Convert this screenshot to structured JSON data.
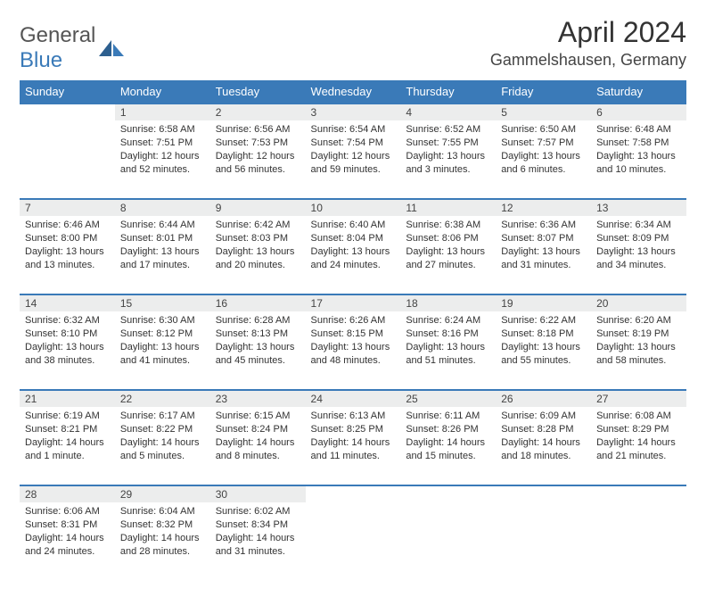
{
  "brand": {
    "text1": "General",
    "text2": "Blue"
  },
  "title": "April 2024",
  "location": "Gammelshausen, Germany",
  "colors": {
    "header_bg": "#3a7ab8",
    "header_text": "#ffffff",
    "daynum_bg": "#eceded",
    "rule": "#3a7ab8",
    "text": "#333333"
  },
  "typography": {
    "title_fontsize": 32,
    "location_fontsize": 18,
    "th_fontsize": 13,
    "cell_fontsize": 11
  },
  "weekdays": [
    "Sunday",
    "Monday",
    "Tuesday",
    "Wednesday",
    "Thursday",
    "Friday",
    "Saturday"
  ],
  "weeks": [
    [
      null,
      {
        "n": "1",
        "sr": "Sunrise: 6:58 AM",
        "ss": "Sunset: 7:51 PM",
        "d1": "Daylight: 12 hours",
        "d2": "and 52 minutes."
      },
      {
        "n": "2",
        "sr": "Sunrise: 6:56 AM",
        "ss": "Sunset: 7:53 PM",
        "d1": "Daylight: 12 hours",
        "d2": "and 56 minutes."
      },
      {
        "n": "3",
        "sr": "Sunrise: 6:54 AM",
        "ss": "Sunset: 7:54 PM",
        "d1": "Daylight: 12 hours",
        "d2": "and 59 minutes."
      },
      {
        "n": "4",
        "sr": "Sunrise: 6:52 AM",
        "ss": "Sunset: 7:55 PM",
        "d1": "Daylight: 13 hours",
        "d2": "and 3 minutes."
      },
      {
        "n": "5",
        "sr": "Sunrise: 6:50 AM",
        "ss": "Sunset: 7:57 PM",
        "d1": "Daylight: 13 hours",
        "d2": "and 6 minutes."
      },
      {
        "n": "6",
        "sr": "Sunrise: 6:48 AM",
        "ss": "Sunset: 7:58 PM",
        "d1": "Daylight: 13 hours",
        "d2": "and 10 minutes."
      }
    ],
    [
      {
        "n": "7",
        "sr": "Sunrise: 6:46 AM",
        "ss": "Sunset: 8:00 PM",
        "d1": "Daylight: 13 hours",
        "d2": "and 13 minutes."
      },
      {
        "n": "8",
        "sr": "Sunrise: 6:44 AM",
        "ss": "Sunset: 8:01 PM",
        "d1": "Daylight: 13 hours",
        "d2": "and 17 minutes."
      },
      {
        "n": "9",
        "sr": "Sunrise: 6:42 AM",
        "ss": "Sunset: 8:03 PM",
        "d1": "Daylight: 13 hours",
        "d2": "and 20 minutes."
      },
      {
        "n": "10",
        "sr": "Sunrise: 6:40 AM",
        "ss": "Sunset: 8:04 PM",
        "d1": "Daylight: 13 hours",
        "d2": "and 24 minutes."
      },
      {
        "n": "11",
        "sr": "Sunrise: 6:38 AM",
        "ss": "Sunset: 8:06 PM",
        "d1": "Daylight: 13 hours",
        "d2": "and 27 minutes."
      },
      {
        "n": "12",
        "sr": "Sunrise: 6:36 AM",
        "ss": "Sunset: 8:07 PM",
        "d1": "Daylight: 13 hours",
        "d2": "and 31 minutes."
      },
      {
        "n": "13",
        "sr": "Sunrise: 6:34 AM",
        "ss": "Sunset: 8:09 PM",
        "d1": "Daylight: 13 hours",
        "d2": "and 34 minutes."
      }
    ],
    [
      {
        "n": "14",
        "sr": "Sunrise: 6:32 AM",
        "ss": "Sunset: 8:10 PM",
        "d1": "Daylight: 13 hours",
        "d2": "and 38 minutes."
      },
      {
        "n": "15",
        "sr": "Sunrise: 6:30 AM",
        "ss": "Sunset: 8:12 PM",
        "d1": "Daylight: 13 hours",
        "d2": "and 41 minutes."
      },
      {
        "n": "16",
        "sr": "Sunrise: 6:28 AM",
        "ss": "Sunset: 8:13 PM",
        "d1": "Daylight: 13 hours",
        "d2": "and 45 minutes."
      },
      {
        "n": "17",
        "sr": "Sunrise: 6:26 AM",
        "ss": "Sunset: 8:15 PM",
        "d1": "Daylight: 13 hours",
        "d2": "and 48 minutes."
      },
      {
        "n": "18",
        "sr": "Sunrise: 6:24 AM",
        "ss": "Sunset: 8:16 PM",
        "d1": "Daylight: 13 hours",
        "d2": "and 51 minutes."
      },
      {
        "n": "19",
        "sr": "Sunrise: 6:22 AM",
        "ss": "Sunset: 8:18 PM",
        "d1": "Daylight: 13 hours",
        "d2": "and 55 minutes."
      },
      {
        "n": "20",
        "sr": "Sunrise: 6:20 AM",
        "ss": "Sunset: 8:19 PM",
        "d1": "Daylight: 13 hours",
        "d2": "and 58 minutes."
      }
    ],
    [
      {
        "n": "21",
        "sr": "Sunrise: 6:19 AM",
        "ss": "Sunset: 8:21 PM",
        "d1": "Daylight: 14 hours",
        "d2": "and 1 minute."
      },
      {
        "n": "22",
        "sr": "Sunrise: 6:17 AM",
        "ss": "Sunset: 8:22 PM",
        "d1": "Daylight: 14 hours",
        "d2": "and 5 minutes."
      },
      {
        "n": "23",
        "sr": "Sunrise: 6:15 AM",
        "ss": "Sunset: 8:24 PM",
        "d1": "Daylight: 14 hours",
        "d2": "and 8 minutes."
      },
      {
        "n": "24",
        "sr": "Sunrise: 6:13 AM",
        "ss": "Sunset: 8:25 PM",
        "d1": "Daylight: 14 hours",
        "d2": "and 11 minutes."
      },
      {
        "n": "25",
        "sr": "Sunrise: 6:11 AM",
        "ss": "Sunset: 8:26 PM",
        "d1": "Daylight: 14 hours",
        "d2": "and 15 minutes."
      },
      {
        "n": "26",
        "sr": "Sunrise: 6:09 AM",
        "ss": "Sunset: 8:28 PM",
        "d1": "Daylight: 14 hours",
        "d2": "and 18 minutes."
      },
      {
        "n": "27",
        "sr": "Sunrise: 6:08 AM",
        "ss": "Sunset: 8:29 PM",
        "d1": "Daylight: 14 hours",
        "d2": "and 21 minutes."
      }
    ],
    [
      {
        "n": "28",
        "sr": "Sunrise: 6:06 AM",
        "ss": "Sunset: 8:31 PM",
        "d1": "Daylight: 14 hours",
        "d2": "and 24 minutes."
      },
      {
        "n": "29",
        "sr": "Sunrise: 6:04 AM",
        "ss": "Sunset: 8:32 PM",
        "d1": "Daylight: 14 hours",
        "d2": "and 28 minutes."
      },
      {
        "n": "30",
        "sr": "Sunrise: 6:02 AM",
        "ss": "Sunset: 8:34 PM",
        "d1": "Daylight: 14 hours",
        "d2": "and 31 minutes."
      },
      null,
      null,
      null,
      null
    ]
  ]
}
